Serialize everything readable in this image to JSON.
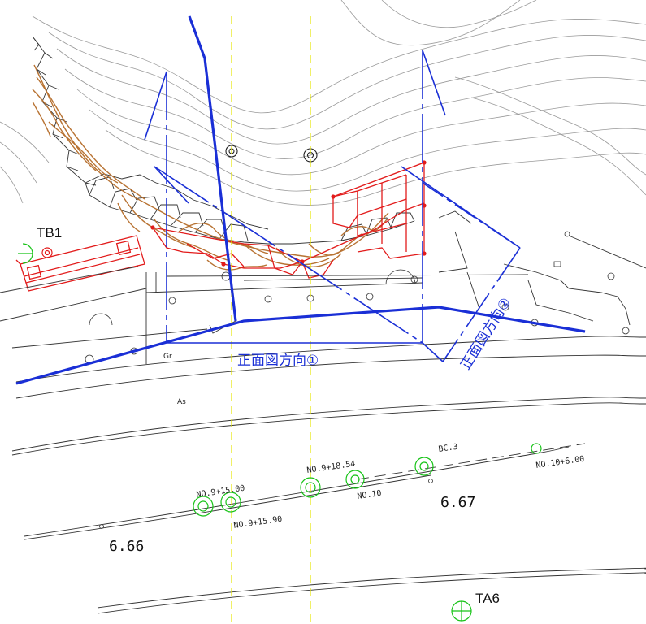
{
  "labels": {
    "front_view_1": "正面図方向①",
    "front_view_2": "正面図方向②",
    "gr": "Gr",
    "as": "As",
    "elev_left": "6.66",
    "elev_right": "6.67",
    "tb1": "TB1",
    "ta6": "TA6",
    "sta_915_00": "NO.9+15.00",
    "sta_915_90": "NO.9+15.90",
    "sta_918_54": "NO.9+18.54",
    "sta_10": "NO.10",
    "sta_bc3": "BC.3",
    "sta_10_6_00": "NO.10+6.00"
  },
  "colors": {
    "contour": "#9a9a9a",
    "linework": "#333333",
    "blue": "#1a2fd6",
    "red": "#e21b1b",
    "brown": "#b87333",
    "green": "#17c317",
    "yellow": "#e6e600"
  }
}
